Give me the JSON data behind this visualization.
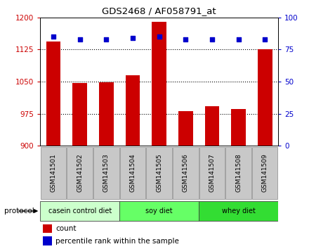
{
  "title": "GDS2468 / AF058791_at",
  "samples": [
    "GSM141501",
    "GSM141502",
    "GSM141503",
    "GSM141504",
    "GSM141505",
    "GSM141506",
    "GSM141507",
    "GSM141508",
    "GSM141509"
  ],
  "counts": [
    1143,
    1047,
    1048,
    1065,
    1190,
    980,
    992,
    985,
    1125
  ],
  "percentile_ranks": [
    85,
    83,
    83,
    84,
    85,
    83,
    83,
    83,
    83
  ],
  "ylim_left": [
    900,
    1200
  ],
  "yticks_left": [
    900,
    975,
    1050,
    1125,
    1200
  ],
  "ylim_right": [
    0,
    100
  ],
  "yticks_right": [
    0,
    25,
    50,
    75,
    100
  ],
  "bar_color": "#cc0000",
  "dot_color": "#0000cc",
  "bg_color": "#ffffff",
  "tick_bg": "#c8c8c8",
  "protocol_groups": [
    {
      "label": "casein control diet",
      "start": 0,
      "end": 3,
      "color": "#ccffcc"
    },
    {
      "label": "soy diet",
      "start": 3,
      "end": 6,
      "color": "#66ff66"
    },
    {
      "label": "whey diet",
      "start": 6,
      "end": 9,
      "color": "#33dd33"
    }
  ],
  "protocol_label": "protocol",
  "legend_items": [
    {
      "label": "count",
      "color": "#cc0000"
    },
    {
      "label": "percentile rank within the sample",
      "color": "#0000cc"
    }
  ],
  "left_label_color": "#cc0000",
  "right_label_color": "#0000cc",
  "bar_width": 0.55,
  "figsize": [
    4.4,
    3.54
  ],
  "dpi": 100
}
